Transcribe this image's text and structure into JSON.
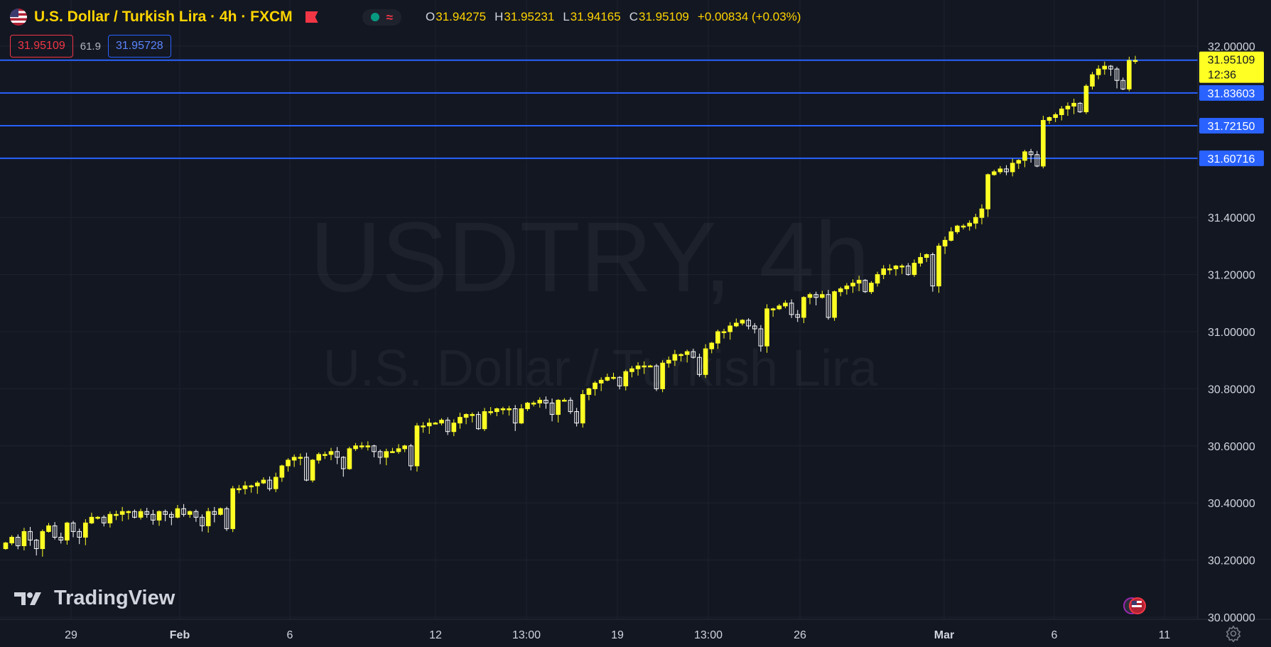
{
  "header": {
    "title": "U.S. Dollar / Turkish Lira · 4h · FXCM",
    "ohlc": [
      {
        "k": "O",
        "v": "31.94275"
      },
      {
        "k": "H",
        "v": "31.95231"
      },
      {
        "k": "L",
        "v": "31.94165"
      },
      {
        "k": "C",
        "v": "31.95109"
      }
    ],
    "change": "+0.00834 (+0.03%)",
    "sell_price": "31.95109",
    "spread": "61.9",
    "buy_price": "31.95728"
  },
  "watermark": {
    "symbol": "USDTRY, 4h",
    "name": "U.S. Dollar / Turkish Lira"
  },
  "logo": {
    "text": "TradingView"
  },
  "colors": {
    "background": "#131722",
    "candle_up": "#ffff24",
    "candle_down": "#ffffff",
    "level_line": "#2962ff",
    "price_label_bg": "#ffff24",
    "grid": "#1e222d"
  },
  "chart_data": {
    "type": "candlestick",
    "y_axis": {
      "min": 30.0,
      "max": 32.0,
      "ticks": [
        "32.00000",
        "31.40000",
        "31.20000",
        "31.00000",
        "30.80000",
        "30.60000",
        "30.40000",
        "30.20000",
        "30.00000"
      ]
    },
    "x_axis": {
      "ticks": [
        "29",
        "Feb",
        "6",
        "12",
        "13:00",
        "19",
        "13:00",
        "26",
        "Mar",
        "6",
        "11"
      ]
    },
    "current_price": {
      "value": 31.95109,
      "label": "31.95109",
      "countdown": "12:36"
    },
    "horizontal_levels": [
      {
        "value": 31.95097,
        "label": "31.95097"
      },
      {
        "value": 31.83603,
        "label": "31.83603"
      },
      {
        "value": 31.7215,
        "label": "31.72150"
      },
      {
        "value": 31.60716,
        "label": "31.60716"
      }
    ],
    "candles_close_path": [
      30.26,
      30.28,
      30.25,
      30.3,
      30.27,
      30.24,
      30.3,
      30.32,
      30.28,
      30.27,
      30.33,
      30.3,
      30.28,
      30.33,
      30.35,
      30.35,
      30.33,
      30.36,
      30.36,
      30.37,
      30.37,
      30.35,
      30.37,
      30.36,
      30.34,
      30.37,
      30.36,
      30.35,
      30.38,
      30.36,
      30.37,
      30.35,
      30.32,
      30.37,
      30.36,
      30.38,
      30.31,
      30.45,
      30.45,
      30.46,
      30.46,
      30.47,
      30.48,
      30.45,
      30.49,
      30.53,
      30.55,
      30.56,
      30.56,
      30.48,
      30.55,
      30.57,
      30.57,
      30.58,
      30.56,
      30.52,
      30.59,
      30.6,
      30.6,
      30.6,
      30.58,
      30.56,
      30.58,
      30.58,
      30.59,
      30.6,
      30.53,
      30.67,
      30.67,
      30.68,
      30.68,
      30.69,
      30.65,
      30.68,
      30.7,
      30.71,
      30.71,
      30.66,
      30.72,
      30.72,
      30.73,
      30.73,
      30.73,
      30.68,
      30.73,
      30.75,
      30.75,
      30.76,
      30.75,
      30.71,
      30.76,
      30.76,
      30.72,
      30.68,
      30.78,
      30.8,
      30.82,
      30.83,
      30.84,
      30.84,
      30.81,
      30.86,
      30.87,
      30.88,
      30.88,
      30.88,
      30.8,
      30.89,
      30.9,
      30.92,
      30.92,
      30.93,
      30.91,
      30.85,
      30.94,
      30.96,
      31.0,
      31.0,
      31.02,
      31.03,
      31.04,
      31.02,
      31.01,
      30.95,
      31.08,
      31.08,
      31.09,
      31.1,
      31.06,
      31.05,
      31.12,
      31.13,
      31.12,
      31.13,
      31.05,
      31.14,
      31.15,
      31.16,
      31.17,
      31.18,
      31.14,
      31.17,
      31.2,
      31.22,
      31.22,
      31.23,
      31.23,
      31.2,
      31.24,
      31.26,
      31.27,
      31.16,
      31.3,
      31.32,
      31.35,
      31.37,
      31.37,
      31.38,
      31.4,
      31.43,
      31.55,
      31.56,
      31.57,
      31.56,
      31.59,
      31.6,
      31.63,
      31.62,
      31.58,
      31.74,
      31.75,
      31.76,
      31.78,
      31.79,
      31.8,
      31.77,
      31.86,
      31.9,
      31.92,
      31.93,
      31.92,
      31.88,
      31.85,
      31.95,
      31.95
    ]
  }
}
